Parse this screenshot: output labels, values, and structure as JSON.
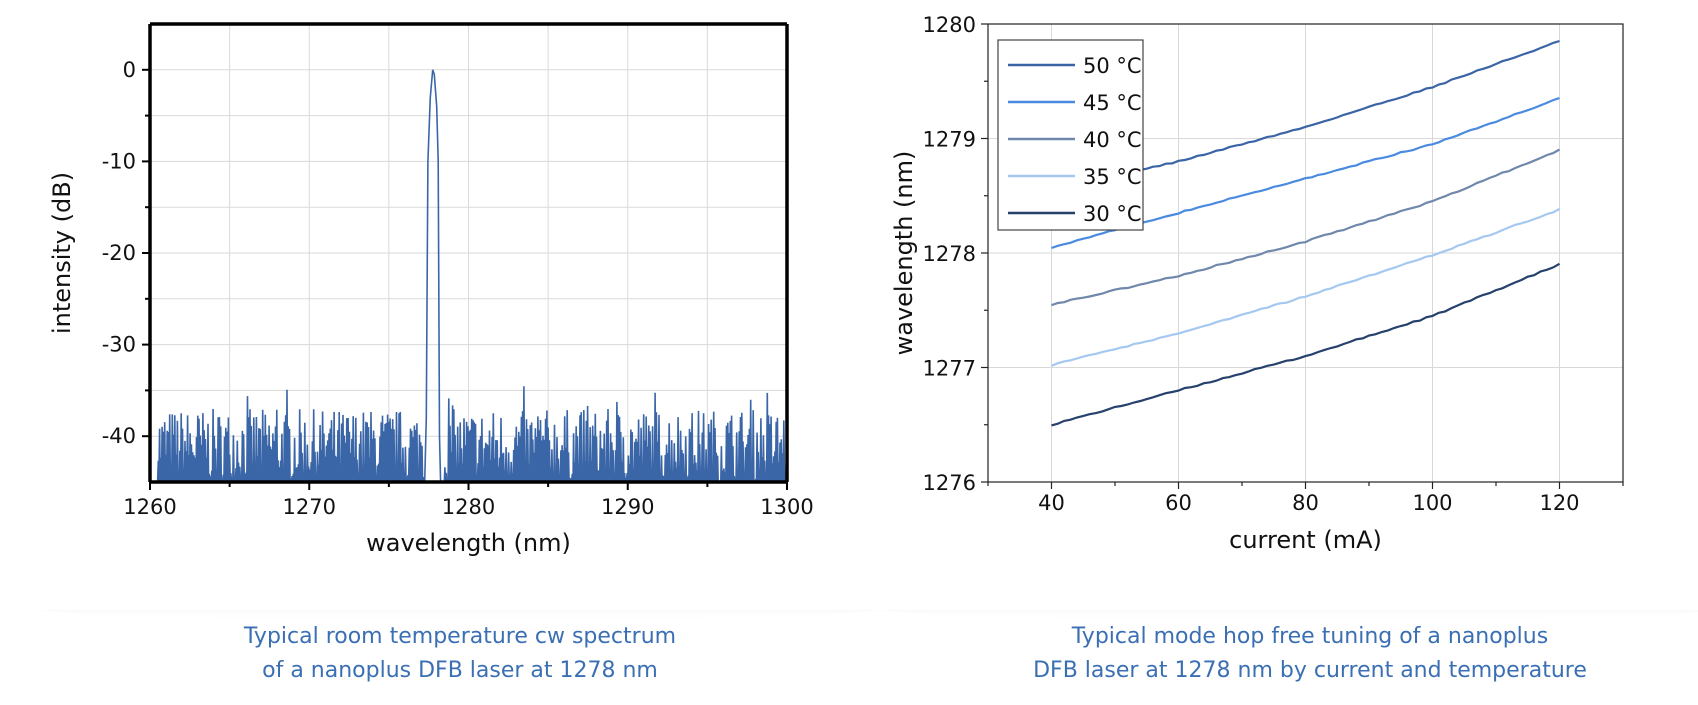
{
  "charts": {
    "left": {
      "type": "line",
      "xlabel": "wavelength (nm)",
      "ylabel": "intensity (dB)",
      "xlim": [
        1260,
        1300
      ],
      "ylim": [
        -45,
        5
      ],
      "xticks": [
        1260,
        1270,
        1280,
        1290,
        1300
      ],
      "yticks": [
        0,
        -10,
        -20,
        -30,
        -40
      ],
      "xtick_labels": [
        "1260",
        "1270",
        "1280",
        "1290",
        "1300"
      ],
      "ytick_labels": [
        "0",
        "-10",
        "-20",
        "-30",
        "-40"
      ],
      "grid": true,
      "color": "#3a66a8",
      "peak": {
        "x": 1277.8,
        "y": 0
      },
      "noise_floor": -45,
      "noise_top": -35
    },
    "right": {
      "type": "line",
      "xlabel": "current (mA)",
      "ylabel": "wavelength (nm)",
      "xlim": [
        30,
        130
      ],
      "ylim": [
        1276,
        1280
      ],
      "xticks": [
        40,
        60,
        80,
        100,
        120
      ],
      "yticks": [
        1276,
        1277,
        1278,
        1279,
        1280
      ],
      "xtick_labels": [
        "40",
        "60",
        "80",
        "100",
        "120"
      ],
      "ytick_labels": [
        "1276",
        "1277",
        "1278",
        "1279",
        "1280"
      ],
      "grid": true,
      "legend_position": "top-left"
    }
  },
  "chart_data": [
    {
      "type": "line",
      "title": "",
      "xlabel": "wavelength (nm)",
      "ylabel": "intensity (dB)",
      "xlim": [
        1260,
        1300
      ],
      "ylim": [
        -45,
        5
      ],
      "series": [
        {
          "x": [
            1260,
            1277.2,
            1277.4,
            1277.6,
            1277.8,
            1278.0,
            1278.2,
            1278.4,
            1300
          ],
          "y": [
            -45,
            -40,
            -10,
            -2,
            0,
            -3,
            -10,
            -40,
            -45
          ]
        }
      ]
    },
    {
      "type": "line",
      "title": "",
      "xlabel": "current (mA)",
      "ylabel": "wavelength (nm)",
      "xlim": [
        30,
        130
      ],
      "ylim": [
        1276,
        1280
      ],
      "x": [
        40,
        60,
        80,
        100,
        120
      ],
      "series": [
        {
          "name": "50 °C",
          "color": "#3a64a6",
          "values": [
            1278.55,
            1278.8,
            1279.1,
            1279.45,
            1279.85
          ]
        },
        {
          "name": "45 °C",
          "color": "#4a8be0",
          "values": [
            1278.05,
            1278.35,
            1278.65,
            1278.95,
            1279.35
          ]
        },
        {
          "name": "40 °C",
          "color": "#7088ac",
          "values": [
            1277.55,
            1277.8,
            1278.1,
            1278.45,
            1278.9
          ]
        },
        {
          "name": "35 °C",
          "color": "#a5c8f0",
          "values": [
            1277.02,
            1277.3,
            1277.62,
            1277.98,
            1278.38
          ]
        },
        {
          "name": "30 °C",
          "color": "#26416c",
          "values": [
            1276.5,
            1276.8,
            1277.1,
            1277.45,
            1277.9
          ]
        }
      ]
    }
  ],
  "captions": {
    "left_line1": "Typical room temperature cw spectrum",
    "left_line2": "of a nanoplus DFB laser at 1278 nm",
    "right_line1": "Typical mode hop free tuning of a nanoplus",
    "right_line2": "DFB laser at 1278 nm by current and temperature"
  }
}
